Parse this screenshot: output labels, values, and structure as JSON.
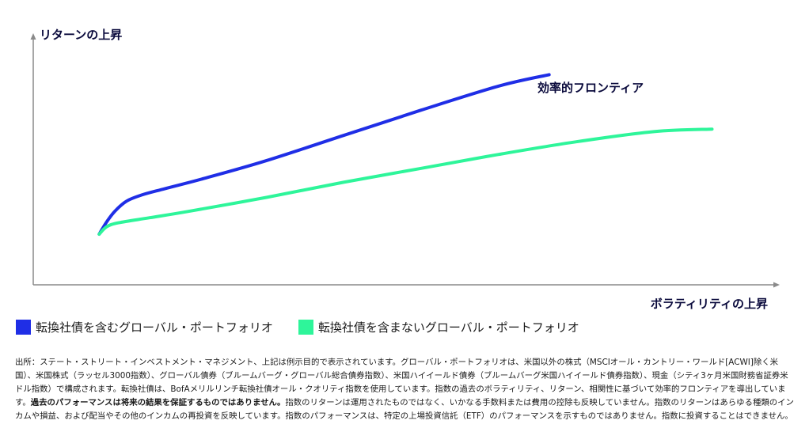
{
  "colors": {
    "efficient_frontier": "#1f2ee6",
    "without_converts": "#2ef59a",
    "axis": "#8a8a8a",
    "title_text": "#0a0a3c"
  },
  "chart_data": {
    "type": "line",
    "title": "",
    "xlabel": "ボラティリティの上昇",
    "ylabel": "リターンの上昇",
    "xlim": [
      0,
      100
    ],
    "ylim": [
      0,
      100
    ],
    "grid": false,
    "annotation": "効率的フロンティア",
    "series": [
      {
        "name": "転換社債を含むグローバル・ポートフォリオ",
        "color": "#1f2ee6",
        "x": [
          8.5,
          9.5,
          10.5,
          12,
          14,
          17,
          22,
          30,
          40,
          50,
          60,
          66.5
        ],
        "y": [
          20,
          25,
          29,
          33,
          35.5,
          38,
          42,
          49,
          59,
          69,
          78.5,
          83
        ]
      },
      {
        "name": "転換社債を含まないグローバル・ポートフォリオ",
        "color": "#2ef59a",
        "x": [
          8.5,
          9.5,
          11,
          15,
          20,
          30,
          40,
          50,
          60,
          70,
          80,
          87.5
        ],
        "y": [
          20,
          23,
          24.5,
          26.5,
          29,
          34.5,
          40.5,
          46,
          51.5,
          56.5,
          60.5,
          61.5
        ]
      }
    ]
  },
  "legend": {
    "items": [
      {
        "label": "転換社債を含むグローバル・ポートフォリオ",
        "color": "#1f2ee6"
      },
      {
        "label": "転換社債を含まないグローバル・ポートフォリオ",
        "color": "#2ef59a"
      }
    ]
  },
  "footnote": {
    "part1": "出所：ステート・ストリート・インベストメント・マネジメント、上記は例示目的で表示されています。グローバル・ポートフォリオは、米国以外の株式（MSCIオール・カントリー・ワールド[ACWI]除く米国）、米国株式（ラッセル3000指数）、グローバル債券（ブルームバーグ・グローバル総合債券指数）、米国ハイイールド債券（ブルームバーグ米国ハイイールド債券指数）、現金（シティ3ヶ月米国財務省証券米ドル指数）で構成されます。転換社債は、BofAメリルリンチ転換社債オール・クオリティ指数を使用しています。指数の過去のボラティリティ、リターン、相関性に基づいて効率的フロンティアを導出しています。",
    "bold": "過去のパフォーマンスは将来の結果を保証するものではありません。",
    "part2": "指数のリターンは運用されたものではなく、いかなる手数料または費用の控除も反映していません。指数のリターンはあらゆる種類のインカムや損益、および配当やその他のインカムの再投資を反映しています。指数のパフォーマンスは、特定の上場投資信託（ETF）のパフォーマンスを示すものではありません。指数に投資することはできません。"
  }
}
